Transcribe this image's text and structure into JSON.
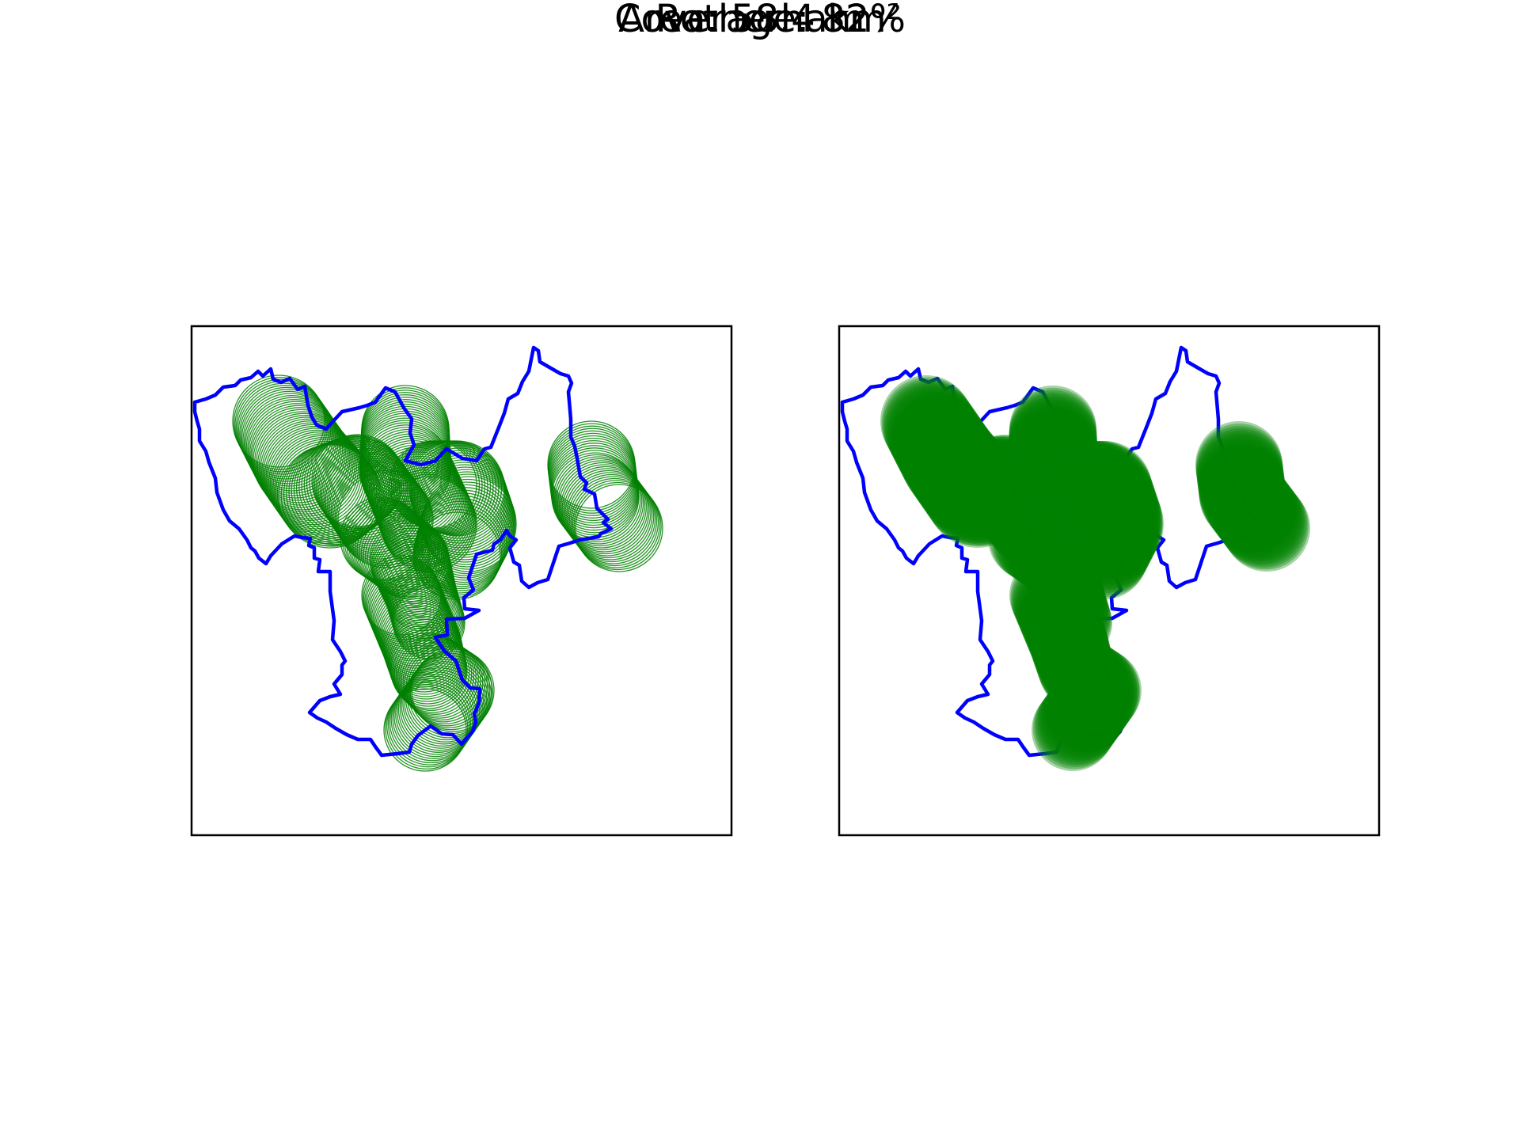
{
  "figure": {
    "title": "Rotherham",
    "coverage_label": "Coverage: 82%",
    "area_label": "Area: 58.4 km²"
  },
  "stats": {
    "coverage_percent": 82,
    "area_km2": 58.4
  },
  "colors": {
    "boundary": "#0000ff",
    "coverage": "#008000",
    "frame": "#000000",
    "background": "#ffffff"
  },
  "panels": [
    {
      "name": "coverage-outline-panel",
      "style": "outline-circles"
    },
    {
      "name": "coverage-filled-panel",
      "style": "filled-circles"
    }
  ]
}
